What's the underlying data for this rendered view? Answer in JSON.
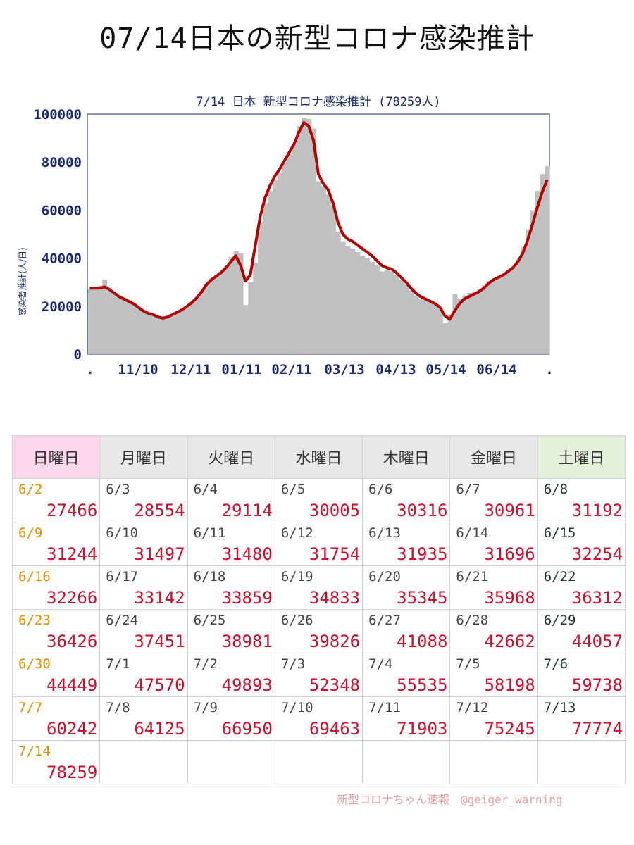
{
  "page_title": "07/14日本の新型コロナ感染推計",
  "footer_credit": "新型コロナちゃん速報　@geiger_warning",
  "colors": {
    "bars": "#c0c0c0",
    "line": "#b00000",
    "axis_text": "#1a2a6b",
    "sunday_header": "#fbd8ec",
    "saturday_header": "#e3f0da",
    "value_text": "#c8102e"
  },
  "chart_data": {
    "type": "bar",
    "title": "7/14 日本 新型コロナ感染推計 (78259人)",
    "ylabel": "感染者推計(人/日)",
    "ylim": [
      0,
      100000
    ],
    "yticks": [
      "100000",
      "80000",
      "60000",
      "40000",
      "20000",
      "0"
    ],
    "xticks": [
      ".",
      "11/10",
      "12/11",
      "01/11",
      "02/11",
      "03/13",
      "04/13",
      "05/14",
      "06/14",
      "."
    ],
    "series": [
      {
        "type": "bar",
        "values": [
          27000,
          27500,
          28500,
          31000,
          26500,
          25500,
          24500,
          23500,
          22500,
          21000,
          19500,
          18000,
          17000,
          16500,
          16000,
          15500,
          15500,
          16500,
          18000,
          19000,
          20000,
          21500,
          23500,
          26500,
          29500,
          31500,
          33000,
          34500,
          36500,
          40500,
          43000,
          42000,
          20500,
          30000,
          38000,
          55000,
          63000,
          68000,
          72500,
          75500,
          80000,
          83500,
          87500,
          95000,
          98500,
          98000,
          94000,
          72000,
          70000,
          66500,
          62000,
          51000,
          47000,
          45000,
          44000,
          42500,
          41000,
          40000,
          38500,
          37000,
          34500,
          35000,
          34500,
          33000,
          31000,
          29000,
          26500,
          24500,
          23000,
          22500,
          21500,
          20500,
          19000,
          13000,
          16500,
          25000,
          23000,
          24500,
          25500,
          26000,
          27000,
          28500,
          30500,
          31500,
          32000,
          33000,
          34500,
          36000,
          39500,
          44500,
          52000,
          60000,
          68000,
          75000,
          78259
        ]
      },
      {
        "type": "line",
        "values": [
          27500,
          27500,
          27500,
          28000,
          27000,
          25500,
          24000,
          23000,
          22000,
          21000,
          19500,
          18000,
          17000,
          16500,
          15500,
          15000,
          15500,
          16500,
          17500,
          18500,
          20000,
          21500,
          23500,
          26000,
          29000,
          31000,
          32500,
          34000,
          36000,
          38500,
          41000,
          37000,
          30500,
          33000,
          45000,
          57000,
          65000,
          70000,
          74000,
          77000,
          80500,
          84000,
          87500,
          92500,
          96500,
          95000,
          89000,
          75000,
          71000,
          68500,
          63000,
          55000,
          50000,
          48000,
          47000,
          45500,
          44000,
          42500,
          41000,
          39000,
          37000,
          36000,
          35500,
          34000,
          32000,
          30000,
          27500,
          25500,
          24000,
          23000,
          22000,
          21000,
          19500,
          16000,
          14500,
          18000,
          21000,
          23000,
          24000,
          25000,
          26000,
          27500,
          29500,
          31000,
          32000,
          33000,
          34500,
          36000,
          38500,
          42000,
          47500,
          54000,
          61000,
          67500,
          72500
        ]
      }
    ]
  },
  "calendar": {
    "weekdays": [
      "日曜日",
      "月曜日",
      "火曜日",
      "水曜日",
      "木曜日",
      "金曜日",
      "土曜日"
    ],
    "weeks": [
      [
        {
          "date": "6/2",
          "value": "27466"
        },
        {
          "date": "6/3",
          "value": "28554"
        },
        {
          "date": "6/4",
          "value": "29114"
        },
        {
          "date": "6/5",
          "value": "30005"
        },
        {
          "date": "6/6",
          "value": "30316"
        },
        {
          "date": "6/7",
          "value": "30961"
        },
        {
          "date": "6/8",
          "value": "31192"
        }
      ],
      [
        {
          "date": "6/9",
          "value": "31244"
        },
        {
          "date": "6/10",
          "value": "31497"
        },
        {
          "date": "6/11",
          "value": "31480"
        },
        {
          "date": "6/12",
          "value": "31754"
        },
        {
          "date": "6/13",
          "value": "31935"
        },
        {
          "date": "6/14",
          "value": "31696"
        },
        {
          "date": "6/15",
          "value": "32254"
        }
      ],
      [
        {
          "date": "6/16",
          "value": "32266"
        },
        {
          "date": "6/17",
          "value": "33142"
        },
        {
          "date": "6/18",
          "value": "33859"
        },
        {
          "date": "6/19",
          "value": "34833"
        },
        {
          "date": "6/20",
          "value": "35345"
        },
        {
          "date": "6/21",
          "value": "35968"
        },
        {
          "date": "6/22",
          "value": "36312"
        }
      ],
      [
        {
          "date": "6/23",
          "value": "36426"
        },
        {
          "date": "6/24",
          "value": "37451"
        },
        {
          "date": "6/25",
          "value": "38981"
        },
        {
          "date": "6/26",
          "value": "39826"
        },
        {
          "date": "6/27",
          "value": "41088"
        },
        {
          "date": "6/28",
          "value": "42662"
        },
        {
          "date": "6/29",
          "value": "44057"
        }
      ],
      [
        {
          "date": "6/30",
          "value": "44449"
        },
        {
          "date": "7/1",
          "value": "47570"
        },
        {
          "date": "7/2",
          "value": "49893"
        },
        {
          "date": "7/3",
          "value": "52348"
        },
        {
          "date": "7/4",
          "value": "55535"
        },
        {
          "date": "7/5",
          "value": "58198"
        },
        {
          "date": "7/6",
          "value": "59738"
        }
      ],
      [
        {
          "date": "7/7",
          "value": "60242"
        },
        {
          "date": "7/8",
          "value": "64125"
        },
        {
          "date": "7/9",
          "value": "66950"
        },
        {
          "date": "7/10",
          "value": "69463"
        },
        {
          "date": "7/11",
          "value": "71903"
        },
        {
          "date": "7/12",
          "value": "75245"
        },
        {
          "date": "7/13",
          "value": "77774"
        }
      ],
      [
        {
          "date": "7/14",
          "value": "78259"
        },
        {
          "date": "",
          "value": ""
        },
        {
          "date": "",
          "value": ""
        },
        {
          "date": "",
          "value": ""
        },
        {
          "date": "",
          "value": ""
        },
        {
          "date": "",
          "value": ""
        },
        {
          "date": "",
          "value": ""
        }
      ]
    ]
  }
}
